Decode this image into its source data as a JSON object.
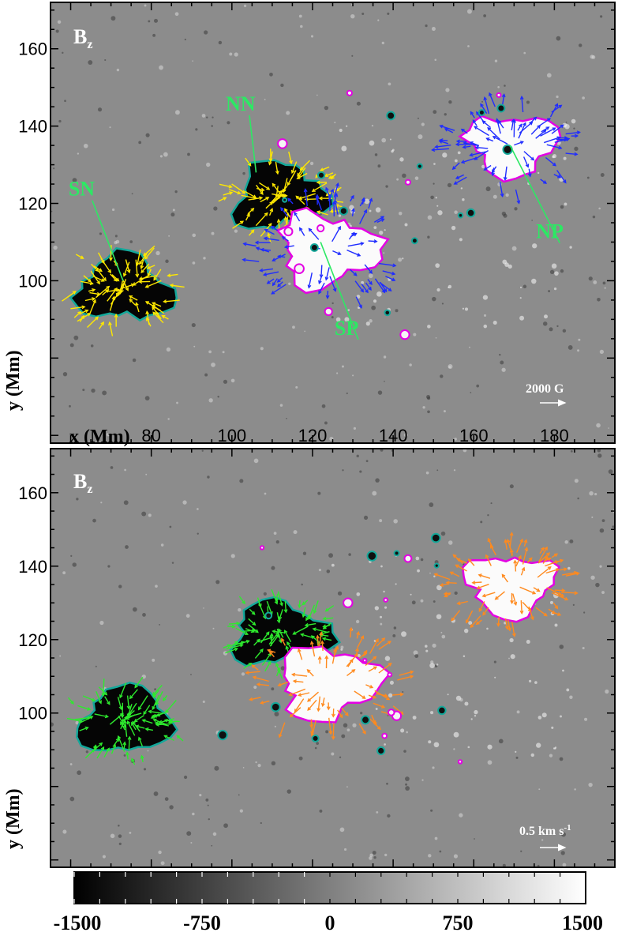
{
  "panels": [
    {
      "title": "B",
      "title_sub": "z",
      "xlabel": "x (Mm)",
      "ylabel": "y (Mm)",
      "scale_label": "2000 G",
      "scale_label_sup": "",
      "pole_labels": [
        "NN",
        "SN",
        "SP",
        "NP"
      ]
    },
    {
      "title": "B",
      "title_sub": "z",
      "xlabel": "",
      "ylabel": "y (Mm)",
      "scale_label": "0.5 km s",
      "scale_label_sup": "-1",
      "pole_labels": []
    }
  ],
  "chart_data": [
    {
      "type": "heatmap",
      "title": "Bz",
      "xlabel": "x (Mm)",
      "ylabel": "y (Mm)",
      "xlim": [
        55,
        195
      ],
      "ylim": [
        58,
        172
      ],
      "xticks": [
        80,
        100,
        120,
        140,
        160,
        180
      ],
      "yticks": [
        100,
        120,
        140,
        160
      ],
      "vector_scale": "2000 G",
      "vector_colors": {
        "negative_polarity": "#ffe800",
        "positive_polarity": "#1f2cff"
      },
      "contour_colors": {
        "negative": "#14a89a",
        "positive": "#e400e4"
      },
      "annotations": [
        {
          "text": "NN",
          "x": 102,
          "y": 144,
          "target": [
            106,
            128
          ]
        },
        {
          "text": "SN",
          "x": 63,
          "y": 122,
          "target": [
            73,
            100
          ]
        },
        {
          "text": "SP",
          "x": 129,
          "y": 86,
          "target": [
            122,
            110
          ]
        },
        {
          "text": "NP",
          "x": 179,
          "y": 111,
          "target": [
            169,
            135
          ]
        }
      ],
      "regions": [
        {
          "name": "SN",
          "polarity": "negative",
          "cx": 73,
          "cy": 98,
          "r": 13
        },
        {
          "name": "NN",
          "polarity": "negative",
          "cx": 112,
          "cy": 122,
          "r": 13
        },
        {
          "name": "SP",
          "polarity": "positive",
          "cx": 124,
          "cy": 108,
          "r": 14
        },
        {
          "name": "NP",
          "polarity": "positive",
          "cx": 169,
          "cy": 135,
          "r": 12
        }
      ]
    },
    {
      "type": "heatmap",
      "title": "Bz",
      "xlabel": "",
      "ylabel": "y (Mm)",
      "xlim": [
        55,
        195
      ],
      "ylim": [
        58,
        172
      ],
      "yticks": [
        100,
        120,
        140,
        160
      ],
      "vector_scale": "0.5 km s-1",
      "vector_colors": {
        "negative_polarity": "#2eea2e",
        "positive_polarity": "#ff8a1e"
      },
      "contour_colors": {
        "negative": "#14a89a",
        "positive": "#e400e4"
      }
    }
  ],
  "colorbar": {
    "min": -1500,
    "max": 1500,
    "ticks": [
      "-1500",
      "-750",
      "0",
      "750",
      "1500"
    ]
  }
}
